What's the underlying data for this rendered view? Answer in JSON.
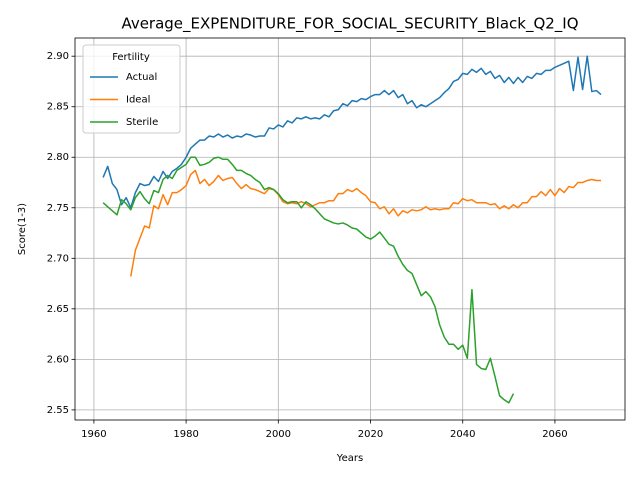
{
  "chart_data": {
    "type": "line",
    "title": "Average_EXPENDITURE_FOR_SOCIAL_SECURITY_Black_Q2_IQ",
    "x_label": "Years",
    "y_label": "Score(1-3)",
    "legend_title": "Fertility",
    "legend_loc": "upper left",
    "grid": true,
    "xlim": [
      1955.9,
      2075.2
    ],
    "ylim": [
      2.54,
      2.918
    ],
    "xticks": [
      1960,
      1980,
      2000,
      2020,
      2040,
      2060
    ],
    "yticks": [
      2.55,
      {
        "value": 2.6,
        "label": "2.60"
      },
      2.65,
      {
        "value": 2.7,
        "label": "2.70"
      },
      2.75,
      {
        "value": 2.8,
        "label": "2.80"
      },
      2.85,
      {
        "value": 2.9,
        "label": "2.90"
      }
    ],
    "x": [
      1962,
      1963,
      1964,
      1965,
      1966,
      1967,
      1968,
      1969,
      1970,
      1971,
      1972,
      1973,
      1974,
      1975,
      1976,
      1977,
      1978,
      1979,
      1980,
      1981,
      1982,
      1983,
      1984,
      1985,
      1986,
      1987,
      1988,
      1989,
      1990,
      1991,
      1992,
      1993,
      1994,
      1995,
      1996,
      1997,
      1998,
      1999,
      2000,
      2001,
      2002,
      2003,
      2004,
      2005,
      2006,
      2007,
      2008,
      2009,
      2010,
      2011,
      2012,
      2013,
      2014,
      2015,
      2016,
      2017,
      2018,
      2019,
      2020,
      2021,
      2022,
      2023,
      2024,
      2025,
      2026,
      2027,
      2028,
      2029,
      2030,
      2031,
      2032,
      2033,
      2034,
      2035,
      2036,
      2037,
      2038,
      2039,
      2040,
      2041,
      2042,
      2043,
      2044,
      2045,
      2046,
      2047,
      2048,
      2049,
      2050,
      2051,
      2052,
      2053,
      2054,
      2055,
      2056,
      2057,
      2058,
      2059,
      2060,
      2061,
      2062,
      2063,
      2064,
      2065,
      2066,
      2067,
      2068,
      2069,
      2070
    ],
    "series": [
      {
        "name": "Actual",
        "color": "#1f77b4",
        "values": [
          2.78,
          2.791,
          2.774,
          2.768,
          2.753,
          2.76,
          2.75,
          2.765,
          2.774,
          2.772,
          2.773,
          2.781,
          2.776,
          2.786,
          2.779,
          2.786,
          2.789,
          2.793,
          2.8,
          2.809,
          2.813,
          2.817,
          2.817,
          2.821,
          2.82,
          2.823,
          2.82,
          2.822,
          2.819,
          2.821,
          2.82,
          2.823,
          2.822,
          2.82,
          2.821,
          2.821,
          2.829,
          2.828,
          2.832,
          2.83,
          2.836,
          2.834,
          2.839,
          2.838,
          2.84,
          2.838,
          2.839,
          2.838,
          2.842,
          2.84,
          2.846,
          2.847,
          2.853,
          2.851,
          2.856,
          2.855,
          2.858,
          2.857,
          2.86,
          2.862,
          2.862,
          2.866,
          2.862,
          2.866,
          2.859,
          2.862,
          2.853,
          2.856,
          2.849,
          2.852,
          2.85,
          2.853,
          2.856,
          2.859,
          2.864,
          2.868,
          2.875,
          2.877,
          2.883,
          2.882,
          2.887,
          2.884,
          2.888,
          2.882,
          2.885,
          2.878,
          2.881,
          2.874,
          2.879,
          2.873,
          2.879,
          2.874,
          2.88,
          2.878,
          2.883,
          2.882,
          2.886,
          2.886,
          2.889,
          2.891,
          2.893,
          2.895,
          2.866,
          2.899,
          2.867,
          2.9,
          2.865,
          2.866,
          2.862
        ]
      },
      {
        "name": "Ideal",
        "color": "#ff7f0e",
        "values": [
          null,
          null,
          null,
          null,
          null,
          null,
          2.682,
          2.708,
          2.72,
          2.732,
          2.73,
          2.752,
          2.749,
          2.763,
          2.753,
          2.765,
          2.765,
          2.768,
          2.772,
          2.783,
          2.787,
          2.774,
          2.778,
          2.772,
          2.776,
          2.782,
          2.777,
          2.779,
          2.78,
          2.774,
          2.769,
          2.773,
          2.769,
          2.768,
          2.766,
          2.764,
          2.769,
          2.768,
          2.763,
          2.756,
          2.754,
          2.755,
          2.754,
          2.756,
          2.754,
          2.751,
          2.753,
          2.755,
          2.755,
          2.757,
          2.757,
          2.764,
          2.764,
          2.768,
          2.766,
          2.769,
          2.765,
          2.762,
          2.756,
          2.755,
          2.749,
          2.751,
          2.744,
          2.749,
          2.742,
          2.747,
          2.745,
          2.748,
          2.747,
          2.748,
          2.751,
          2.748,
          2.749,
          2.748,
          2.749,
          2.749,
          2.755,
          2.754,
          2.759,
          2.757,
          2.758,
          2.755,
          2.755,
          2.755,
          2.753,
          2.754,
          2.749,
          2.752,
          2.749,
          2.753,
          2.75,
          2.755,
          2.755,
          2.761,
          2.761,
          2.766,
          2.762,
          2.768,
          2.762,
          2.769,
          2.765,
          2.771,
          2.77,
          2.775,
          2.775,
          2.777,
          2.778,
          2.777,
          2.777
        ]
      },
      {
        "name": "Sterile",
        "color": "#2ca02c",
        "values": [
          2.755,
          2.751,
          2.747,
          2.743,
          2.758,
          2.754,
          2.748,
          2.76,
          2.766,
          2.759,
          2.754,
          2.767,
          2.765,
          2.778,
          2.782,
          2.779,
          2.787,
          2.79,
          2.793,
          2.8,
          2.8,
          2.792,
          2.793,
          2.795,
          2.799,
          2.8,
          2.798,
          2.798,
          2.793,
          2.787,
          2.787,
          2.784,
          2.782,
          2.778,
          2.775,
          2.768,
          2.77,
          2.768,
          2.764,
          2.758,
          2.755,
          2.756,
          2.756,
          2.75,
          2.756,
          2.753,
          2.749,
          2.744,
          2.739,
          2.737,
          2.735,
          2.734,
          2.735,
          2.733,
          2.73,
          2.729,
          2.725,
          2.721,
          2.719,
          2.722,
          2.726,
          2.72,
          2.714,
          2.712,
          2.702,
          2.694,
          2.688,
          2.685,
          2.674,
          2.663,
          2.667,
          2.662,
          2.652,
          2.634,
          2.622,
          2.615,
          2.615,
          2.61,
          2.614,
          2.601,
          2.669,
          2.595,
          2.591,
          2.59,
          2.601,
          2.583,
          2.564,
          2.56,
          2.557,
          2.566,
          null,
          null,
          null,
          null,
          null,
          null,
          null,
          null,
          null,
          null,
          null,
          null,
          null,
          null,
          null,
          null,
          null,
          null,
          null
        ]
      }
    ]
  }
}
